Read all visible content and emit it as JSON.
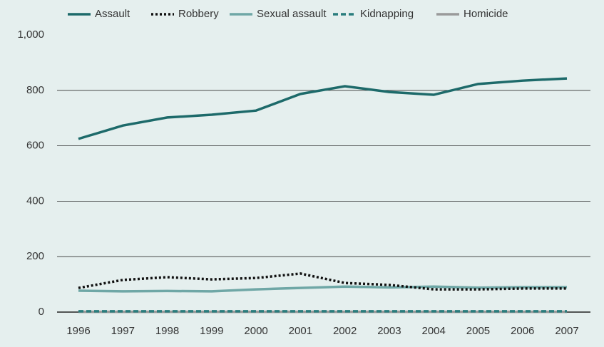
{
  "chart_data": {
    "type": "line",
    "x": [
      1996,
      1997,
      1998,
      1999,
      2000,
      2001,
      2002,
      2003,
      2004,
      2005,
      2006,
      2007
    ],
    "series": [
      {
        "name": "Assault",
        "color": "#1d6a6a",
        "dash": "solid",
        "values": [
          625,
          673,
          702,
          712,
          727,
          787,
          815,
          794,
          784,
          823,
          835,
          843
        ]
      },
      {
        "name": "Robbery",
        "color": "#111111",
        "dash": "dotted",
        "values": [
          87,
          116,
          126,
          118,
          123,
          139,
          105,
          98,
          82,
          82,
          85,
          85
        ]
      },
      {
        "name": "Sexual assault",
        "color": "#6fa7a6",
        "dash": "solid",
        "values": [
          77,
          75,
          76,
          75,
          82,
          87,
          92,
          89,
          92,
          88,
          90,
          90
        ]
      },
      {
        "name": "Kidnapping",
        "color": "#2a7d7d",
        "dash": "dashed",
        "values": [
          3,
          3,
          3,
          3,
          3,
          3,
          3,
          3,
          3,
          3,
          3,
          3
        ]
      },
      {
        "name": "Homicide",
        "color": "#9a9a9a",
        "dash": "solid",
        "values": [
          1,
          1,
          1,
          1,
          1,
          1,
          1,
          1,
          1,
          1,
          1,
          1
        ]
      }
    ],
    "ylim": [
      0,
      1000
    ],
    "yticks": [
      0,
      200,
      400,
      600,
      800,
      {
        "value": 1000,
        "label": "1,000"
      }
    ],
    "grid": true,
    "legend": "top"
  }
}
